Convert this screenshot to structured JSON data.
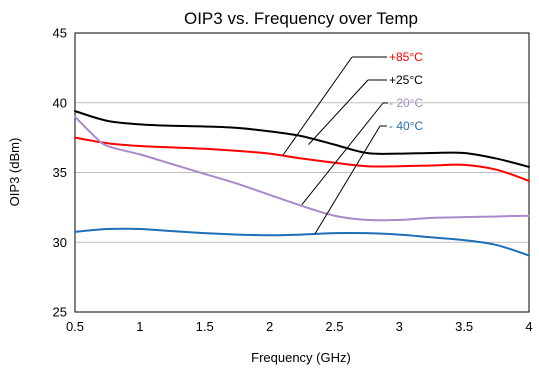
{
  "chart_data": {
    "type": "line",
    "title": "OIP3 vs. Frequency over Temp",
    "xlabel": "Frequency (GHz)",
    "ylabel": "OIP3 (dBm)",
    "xlim": [
      0.5,
      4
    ],
    "ylim": [
      25,
      45
    ],
    "x_ticks": [
      0.5,
      1,
      1.5,
      2,
      2.5,
      3,
      3.5,
      4
    ],
    "x_tick_labels": [
      "0.5",
      "1",
      "1.5",
      "2",
      "2.5",
      "3",
      "3.5",
      "4"
    ],
    "y_ticks": [
      25,
      30,
      35,
      40,
      45
    ],
    "y_tick_labels": [
      "25",
      "30",
      "35",
      "40",
      "45"
    ],
    "grid": "horizontal",
    "legend_style": "callout labels with leader lines",
    "series": [
      {
        "name": "+85°C",
        "color": "#ff0000",
        "x": [
          0.5,
          0.75,
          1,
          1.25,
          1.5,
          1.75,
          2,
          2.25,
          2.5,
          2.75,
          3,
          3.25,
          3.5,
          3.75,
          4
        ],
        "values": [
          37.5,
          37.1,
          36.9,
          36.8,
          36.7,
          36.55,
          36.35,
          36.0,
          35.7,
          35.45,
          35.45,
          35.5,
          35.55,
          35.2,
          34.4
        ],
        "label_anchor": [
          2.1,
          36.2
        ]
      },
      {
        "name": "+25°C",
        "color": "#000000",
        "x": [
          0.5,
          0.75,
          1,
          1.25,
          1.5,
          1.75,
          2,
          2.25,
          2.5,
          2.75,
          3,
          3.25,
          3.5,
          3.75,
          4
        ],
        "values": [
          39.4,
          38.7,
          38.45,
          38.35,
          38.3,
          38.2,
          37.95,
          37.6,
          37.0,
          36.4,
          36.35,
          36.4,
          36.4,
          36.0,
          35.4
        ],
        "label_anchor": [
          2.3,
          37.0
        ]
      },
      {
        "name": "- 20°C",
        "color": "#a889c9",
        "x": [
          0.5,
          0.65,
          0.75,
          1,
          1.25,
          1.5,
          1.75,
          2,
          2.25,
          2.5,
          2.75,
          3,
          3.25,
          3.5,
          3.75,
          4
        ],
        "values": [
          39.0,
          37.6,
          36.9,
          36.3,
          35.6,
          34.9,
          34.2,
          33.4,
          32.6,
          31.9,
          31.6,
          31.6,
          31.75,
          31.8,
          31.85,
          31.9
        ],
        "label_anchor": [
          2.25,
          32.7
        ]
      },
      {
        "name": "- 40°C",
        "color": "#1f6fb8",
        "x": [
          0.5,
          0.75,
          1,
          1.25,
          1.5,
          1.75,
          2,
          2.25,
          2.5,
          2.75,
          3,
          3.25,
          3.5,
          3.75,
          4
        ],
        "values": [
          30.75,
          30.95,
          30.95,
          30.8,
          30.65,
          30.55,
          30.5,
          30.55,
          30.65,
          30.65,
          30.55,
          30.35,
          30.15,
          29.8,
          29.05
        ],
        "label_anchor": [
          2.35,
          30.6
        ]
      }
    ]
  }
}
